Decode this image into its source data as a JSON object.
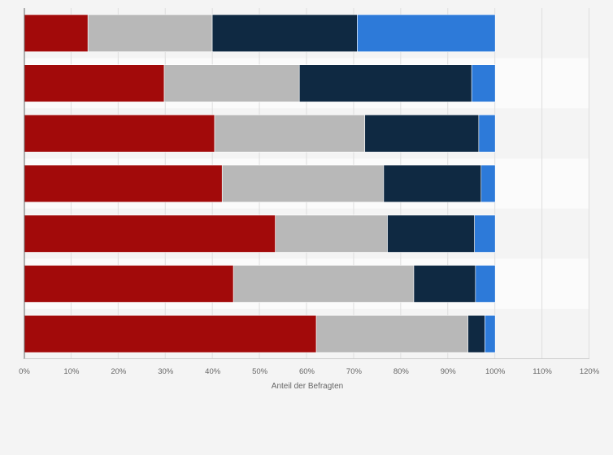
{
  "chart_data": {
    "type": "bar",
    "orientation": "horizontal",
    "stacked": true,
    "title": "",
    "xlabel": "Anteil der Befragten",
    "ylabel": "",
    "xlim": [
      0,
      120
    ],
    "x_ticks": [
      0,
      10,
      20,
      30,
      40,
      50,
      60,
      70,
      80,
      90,
      100,
      110,
      120
    ],
    "tick_labels": [
      "0%",
      "10%",
      "20%",
      "30%",
      "40%",
      "50%",
      "60%",
      "70%",
      "80%",
      "90%",
      "100%",
      "110%",
      "120%"
    ],
    "categories": [
      "",
      "",
      "",
      "",
      "",
      "",
      ""
    ],
    "grid": true,
    "legend": "none",
    "series": [
      {
        "name": "",
        "color": "#a20a0a",
        "values": [
          13.5,
          29.7,
          40.4,
          42,
          53.3,
          44.4,
          62
        ]
      },
      {
        "name": "",
        "color": "#b8b8b8",
        "values": [
          26.4,
          28.7,
          31.9,
          34.3,
          23.8,
          38.3,
          32.2
        ]
      },
      {
        "name": "",
        "color": "#0f2942",
        "values": [
          30.8,
          36.6,
          24.2,
          20.7,
          18.5,
          13.1,
          3.6
        ]
      },
      {
        "name": "",
        "color": "#2d7ad9",
        "values": [
          29.3,
          5,
          3.5,
          3,
          4.4,
          4.2,
          2.2
        ]
      }
    ]
  }
}
